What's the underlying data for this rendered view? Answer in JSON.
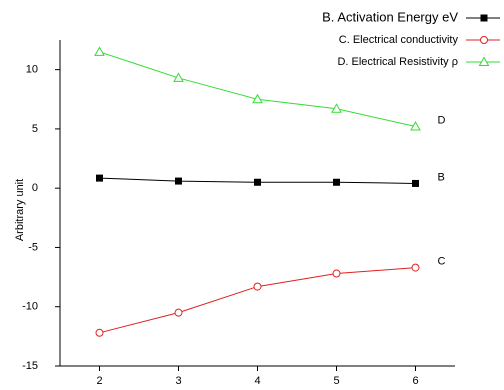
{
  "chart_data": {
    "type": "line",
    "y_label": "Arbitrary  unit",
    "x": [
      2,
      3,
      4,
      5,
      6
    ],
    "xlim": [
      1.5,
      6.5
    ],
    "xticks": [
      2,
      3,
      4,
      5,
      6
    ],
    "ylim": [
      -15,
      12.5
    ],
    "yticks": [
      10,
      5,
      0,
      {
        "value": -5,
        "label": "-5"
      },
      {
        "value": -10,
        "label": "-10"
      },
      {
        "value": -15,
        "label": "-15"
      }
    ],
    "series": [
      {
        "name": "B. Activation Energy  eV",
        "end_label": "B",
        "color": "#000000",
        "marker": "square",
        "values": [
          0.85,
          0.6,
          0.5,
          0.5,
          0.4
        ]
      },
      {
        "name": "C. Electrical conductivity",
        "end_label": "C",
        "color": "#e02020",
        "marker": "circle",
        "values": [
          -12.2,
          -10.5,
          -8.3,
          -7.2,
          -6.7
        ]
      },
      {
        "name": "D. Electrical Resistivity ρ",
        "end_label": "D",
        "color": "#33dd33",
        "marker": "triangle",
        "values": [
          11.5,
          9.3,
          7.5,
          6.7,
          5.2
        ]
      }
    ]
  }
}
